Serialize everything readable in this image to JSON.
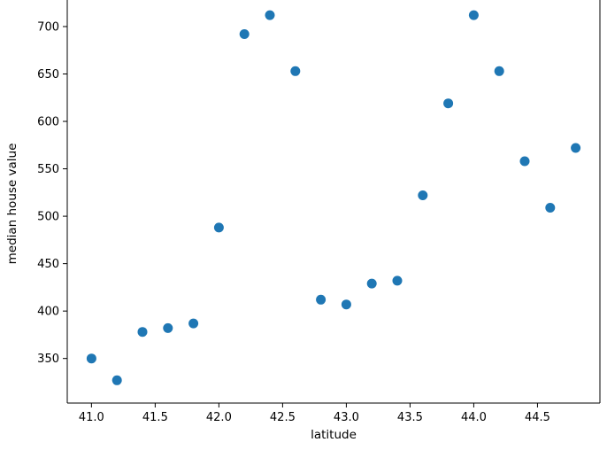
{
  "figure": {
    "background_color": "#ffffff"
  },
  "chart_data": {
    "type": "scatter",
    "title": "",
    "xlabel": "latitude",
    "ylabel": "median house value",
    "x": [
      41.0,
      41.2,
      41.4,
      41.6,
      41.8,
      42.0,
      42.2,
      42.4,
      42.6,
      42.8,
      43.0,
      43.2,
      43.4,
      43.6,
      43.8,
      44.0,
      44.2,
      44.4,
      44.6,
      44.8
    ],
    "y": [
      350,
      327,
      378,
      382,
      387,
      488,
      692,
      712,
      653,
      412,
      407,
      429,
      432,
      522,
      619,
      712,
      653,
      558,
      509,
      572
    ],
    "xticks": [
      "41.0",
      "41.5",
      "42.0",
      "42.5",
      "43.0",
      "43.5",
      "44.0",
      "44.5"
    ],
    "yticks": [
      "350",
      "400",
      "450",
      "500",
      "550",
      "600",
      "650",
      "700"
    ],
    "xlim": [
      40.81,
      44.99
    ],
    "ylim": [
      303,
      728
    ],
    "grid": false,
    "legend_position": "none",
    "marker_color": "#1f77b4",
    "axis_color": "#000000",
    "top_cropped": true
  }
}
